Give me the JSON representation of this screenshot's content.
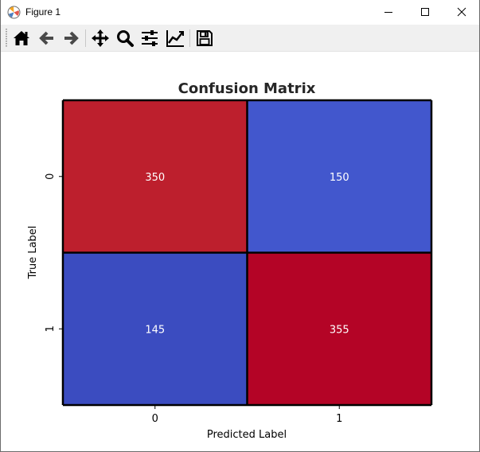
{
  "window": {
    "title": "Figure 1",
    "icon": "matplotlib-logo-icon",
    "controls": [
      "minimize-icon",
      "maximize-icon",
      "close-icon"
    ]
  },
  "toolbar": {
    "buttons": [
      {
        "name": "home-button",
        "icon": "home-icon"
      },
      {
        "name": "back-button",
        "icon": "arrow-left-icon"
      },
      {
        "name": "forward-button",
        "icon": "arrow-right-icon"
      },
      {
        "name": "pan-button",
        "icon": "move-icon"
      },
      {
        "name": "zoom-button",
        "icon": "magnifier-icon"
      },
      {
        "name": "configure-subplots-button",
        "icon": "sliders-icon"
      },
      {
        "name": "edit-axis-button",
        "icon": "line-chart-icon"
      },
      {
        "name": "save-button",
        "icon": "floppy-disk-icon"
      }
    ]
  },
  "chart_data": {
    "type": "heatmap",
    "title": "Confusion Matrix",
    "xlabel": "Predicted Label",
    "ylabel": "True Label",
    "x_categories": [
      "0",
      "1"
    ],
    "y_categories": [
      "0",
      "1"
    ],
    "values": [
      [
        350,
        150
      ],
      [
        145,
        355
      ]
    ],
    "colormap": "coolwarm",
    "colors": [
      [
        "#bd1f2d",
        "#4257cd"
      ],
      [
        "#3b4cc0",
        "#b40426"
      ]
    ],
    "value_text_color": "#ffffff",
    "grid_line_color": "#000000",
    "colorbar": false
  }
}
